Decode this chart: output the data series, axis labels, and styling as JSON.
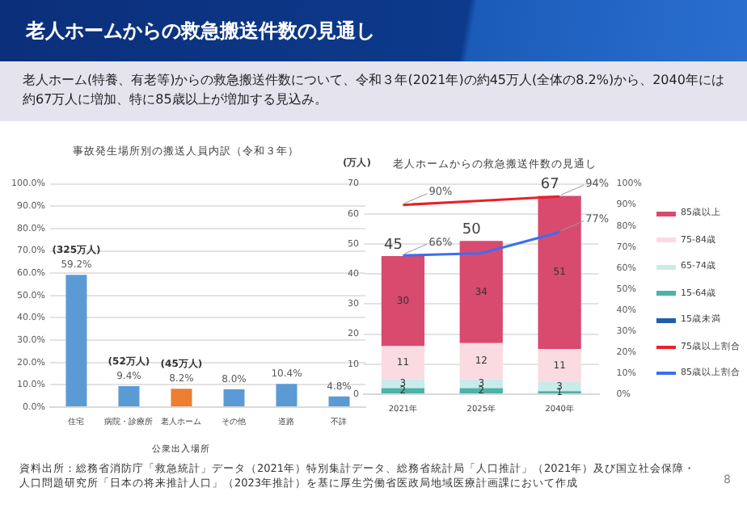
{
  "chart_data": [
    {
      "type": "other",
      "title": "老人ホームからの救急搬送件数の見通し",
      "subtitle": "老人ホーム(特養、有老等)からの救急搬送件数について、令和３年(2021年)の約45万人(全体の8.2%)から、2040年には約67万人に増加、特に85歳以上が増加する見込み。",
      "annotations": [
        "資料出所：総務省消防庁「救急統計」データ（2021年）特別集計データ、総務省統計局「人口推計」（2021年）及び国立社会保障・人口問題研究所「日本の将来推計人口」（2023年推計）を基に厚生労働省医政局地域医療計画課において作成",
        "8"
      ]
    },
    {
      "type": "bar",
      "title": "事故発生場所別の搬送人員内訳（令和３年）",
      "categories": [
        "住宅",
        "病院・診療所",
        "老人ホーム",
        "その他",
        "道路",
        "不詳"
      ],
      "values": [
        59.2,
        9.4,
        8.2,
        8.0,
        10.4,
        4.8
      ],
      "colors": [
        "#5b9bd5",
        "#5b9bd5",
        "#ed7d31",
        "#5b9bd5",
        "#5b9bd5",
        "#5b9bd5"
      ],
      "value_labels": [
        "59.2%",
        "9.4%",
        "8.2%",
        "8.0%",
        "10.4%",
        "4.8%"
      ],
      "ylim": [
        0,
        100
      ],
      "yticks": [
        {
          "value": 0,
          "label": "0.0%"
        },
        {
          "value": 10,
          "label": "10.0%"
        },
        {
          "value": 20,
          "label": "20.0%"
        },
        {
          "value": 30,
          "label": "30.0%"
        },
        {
          "value": 40,
          "label": "40.0%"
        },
        {
          "value": 50,
          "label": "50.0%"
        },
        {
          "value": 60,
          "label": "60.0%"
        },
        {
          "value": 70,
          "label": "70.0%"
        },
        {
          "value": 80,
          "label": "80.0%"
        },
        {
          "value": 90,
          "label": "90.0%"
        },
        {
          "value": 100,
          "label": "100.0%"
        }
      ],
      "grid": "y",
      "annotations": [
        {
          "text": "(325万人)",
          "x": "住宅",
          "y": 59.2
        },
        {
          "text": "(52万人)",
          "x": "病院・診療所",
          "y": 9.4
        },
        {
          "text": "(45万人)",
          "x": "老人ホーム",
          "y": 8.2
        },
        "公衆出入場所"
      ]
    },
    {
      "type": "bar",
      "title": "老人ホームからの救急搬送件数の見通し",
      "ylabel": "(万人)",
      "categories": [
        "2021年",
        "2025年",
        "2040年"
      ],
      "stacked": true,
      "series": [
        {
          "name": "15歳未満",
          "color": "#1f5fa8",
          "values": [
            0,
            0,
            0
          ]
        },
        {
          "name": "15-64歳",
          "color": "#4bb3a7",
          "values": [
            2,
            2,
            1
          ],
          "value_labels": [
            "2",
            "2",
            "1"
          ]
        },
        {
          "name": "65-74歳",
          "color": "#c9ebe9",
          "values": [
            3,
            3,
            3
          ],
          "value_labels": [
            "3",
            "3",
            "3"
          ]
        },
        {
          "name": "75-84歳",
          "color": "#fadbe1",
          "values": [
            11,
            12,
            11
          ],
          "value_labels": [
            "11",
            "12",
            "11"
          ]
        },
        {
          "name": "85歳以上",
          "color": "#d94a6f",
          "values": [
            30,
            34,
            51
          ],
          "value_labels": [
            "30",
            "34",
            "51"
          ]
        },
        {
          "name": "75歳以上割合",
          "type": "line",
          "axis": "y2",
          "color": "#e8212b",
          "values": [
            90,
            92,
            94
          ],
          "value_labels": [
            "90%",
            null,
            "94%"
          ]
        },
        {
          "name": "85歳以上割合",
          "type": "line",
          "axis": "y2",
          "color": "#3b6ef0",
          "values": [
            66,
            67,
            77
          ],
          "value_labels": [
            "66%",
            null,
            "77%"
          ]
        }
      ],
      "totals": [
        "45",
        "50",
        "67"
      ],
      "ylim": [
        0,
        70
      ],
      "yticks": [
        0,
        10,
        20,
        30,
        40,
        50,
        60,
        70
      ],
      "y2lim": [
        0,
        100
      ],
      "y2ticks": [
        {
          "value": 0,
          "label": "0%"
        },
        {
          "value": 10,
          "label": "10%"
        },
        {
          "value": 20,
          "label": "20%"
        },
        {
          "value": 30,
          "label": "30%"
        },
        {
          "value": 40,
          "label": "40%"
        },
        {
          "value": 50,
          "label": "50%"
        },
        {
          "value": 60,
          "label": "60%"
        },
        {
          "value": 70,
          "label": "70%"
        },
        {
          "value": 80,
          "label": "80%"
        },
        {
          "value": 90,
          "label": "90%"
        },
        {
          "value": 100,
          "label": "100%"
        }
      ],
      "grid": "y",
      "legend": "right",
      "marker": "none"
    }
  ]
}
